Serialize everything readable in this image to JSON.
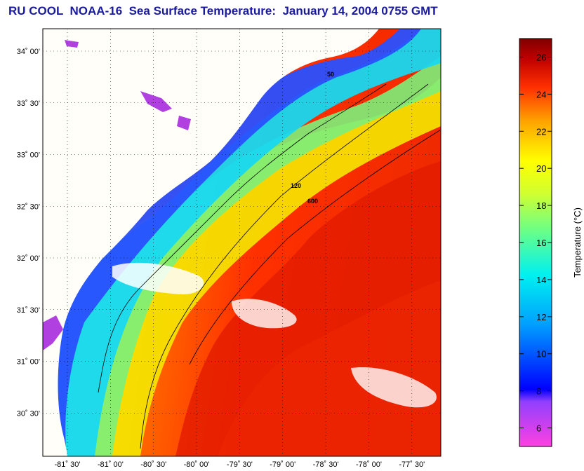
{
  "title": "RU COOL  NOAA-16  Sea Surface Temperature:  January 14, 2004 0755 GMT",
  "map": {
    "lat_labels": [
      {
        "value": 34.0,
        "text": "34˚ 00'"
      },
      {
        "value": 33.5,
        "text": "33˚ 30'"
      },
      {
        "value": 33.0,
        "text": "33˚ 00'"
      },
      {
        "value": 32.5,
        "text": "32˚ 30'"
      },
      {
        "value": 32.0,
        "text": "32˚ 00'"
      },
      {
        "value": 31.5,
        "text": "31˚ 30'"
      },
      {
        "value": 31.0,
        "text": "31˚ 00'"
      },
      {
        "value": 30.5,
        "text": "30˚ 30'"
      }
    ],
    "lon_labels": [
      {
        "value": -81.5,
        "text": "-81˚ 30'"
      },
      {
        "value": -81.0,
        "text": "-81˚ 00'"
      },
      {
        "value": -80.5,
        "text": "-80˚ 30'"
      },
      {
        "value": -80.0,
        "text": "-80˚ 00'"
      },
      {
        "value": -79.5,
        "text": "-79˚ 30'"
      },
      {
        "value": -79.0,
        "text": "-79˚ 00'"
      },
      {
        "value": -78.5,
        "text": "-78˚ 30'"
      },
      {
        "value": -78.0,
        "text": "-78˚ 00'"
      },
      {
        "value": -77.5,
        "text": "-77˚ 30'"
      }
    ],
    "contour_labels": [
      "50",
      "120",
      "600"
    ]
  },
  "colorbar": {
    "title": "Temperature (°C)",
    "min": 5,
    "max": 27,
    "ticks": [
      "6",
      "8",
      "10",
      "12",
      "14",
      "16",
      "18",
      "20",
      "22",
      "24",
      "26"
    ]
  },
  "colors": {
    "title": "#1a1aa0",
    "land": "#fffef8",
    "cloud": "#ffffff"
  }
}
